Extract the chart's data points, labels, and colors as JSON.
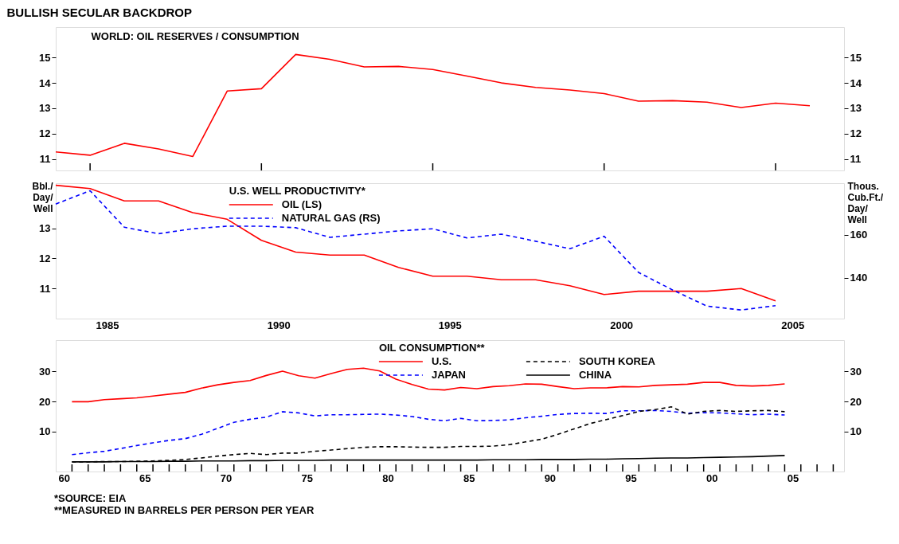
{
  "chart_data": [
    {
      "type": "line",
      "title": "BULLISH SECULAR BACKDROP",
      "subtitle": "WORLD: OIL RESERVES / CONSUMPTION",
      "x": [
        "1984",
        "1985",
        "1986",
        "1987",
        "1988",
        "1989",
        "1990",
        "1991",
        "1992",
        "1993",
        "1994",
        "1995",
        "1996",
        "1997",
        "1998",
        "1999",
        "2000",
        "2001",
        "2002",
        "2003",
        "2004",
        "2005",
        "2006"
      ],
      "xlim": [
        "1984",
        "2007"
      ],
      "xticks": [
        {
          "value": "1985",
          "label": null
        },
        {
          "value": "1990",
          "label": null
        },
        {
          "value": "1995",
          "label": null
        },
        {
          "value": "2000",
          "label": null
        },
        {
          "value": "2005",
          "label": null
        }
      ],
      "series": [
        {
          "color": "#ff0000",
          "line_style": "solid",
          "values": [
            11.28,
            11.15,
            11.62,
            11.4,
            11.1,
            13.68,
            13.77,
            15.12,
            14.93,
            14.63,
            14.65,
            14.53,
            14.27,
            14.0,
            13.82,
            13.72,
            13.58,
            13.28,
            13.3,
            13.24,
            13.03,
            13.2,
            13.1
          ]
        }
      ],
      "ylim": [
        10.55,
        16.2
      ],
      "yticks": [
        11,
        12,
        13,
        14,
        15
      ],
      "y2lim": [
        10.55,
        16.2
      ],
      "y2ticks": [
        11,
        12,
        13,
        14,
        15
      ],
      "tick_labels": "y",
      "grid": false,
      "legend": false
    },
    {
      "type": "line",
      "legend_title": "U.S. WELL PRODUCTIVITY*",
      "ylabel": "Bbl./Day/Well",
      "y2label": "Thous. Cub.Ft./Day/Well",
      "x": [
        "1984",
        "1985",
        "1986",
        "1987",
        "1988",
        "1989",
        "1990",
        "1991",
        "1992",
        "1993",
        "1994",
        "1995",
        "1996",
        "1997",
        "1998",
        "1999",
        "2000",
        "2001",
        "2002",
        "2003",
        "2004",
        "2005"
      ],
      "xlim": [
        "1984",
        "2007"
      ],
      "xticks": [
        {
          "value": "1985-07",
          "label": "1985"
        },
        {
          "value": "1990-07",
          "label": "1990"
        },
        {
          "value": "1995-07",
          "label": "1995"
        },
        {
          "value": "2000-07",
          "label": "2000"
        },
        {
          "value": "2005-07",
          "label": "2005"
        }
      ],
      "series": [
        {
          "name": "OIL (LS)",
          "color": "#ff0000",
          "line_style": "solid",
          "values": [
            14.43,
            14.32,
            13.91,
            13.91,
            13.52,
            13.3,
            12.6,
            12.21,
            12.11,
            12.11,
            11.7,
            11.41,
            11.41,
            11.29,
            11.29,
            11.09,
            10.8,
            10.91,
            10.91,
            10.91,
            11.0,
            10.59
          ]
        },
        {
          "name": "NATURAL GAS (RS)",
          "color": "#0000ff",
          "line_style": "dashed",
          "axis": "y2",
          "values": [
            174.3,
            180.5,
            163.5,
            160.5,
            162.8,
            164,
            164,
            163.3,
            158.8,
            160.3,
            161.8,
            162.8,
            158.5,
            160.3,
            157,
            153.5,
            159.3,
            142.5,
            134.3,
            126.8,
            125,
            127
          ]
        }
      ],
      "ylim": [
        10,
        14.5
      ],
      "yticks": [
        11,
        12,
        13
      ],
      "y2lim": [
        121,
        184
      ],
      "y2ticks": [
        140,
        160
      ],
      "grid": false,
      "legend": "top left"
    },
    {
      "type": "line",
      "legend_title": "OIL CONSUMPTION**",
      "x": [
        "1961",
        "1962",
        "1963",
        "1964",
        "1965",
        "1966",
        "1967",
        "1968",
        "1969",
        "1970",
        "1971",
        "1972",
        "1973",
        "1974",
        "1975",
        "1976",
        "1977",
        "1978",
        "1979",
        "1980",
        "1981",
        "1982",
        "1983",
        "1984",
        "1985",
        "1986",
        "1987",
        "1988",
        "1989",
        "1990",
        "1991",
        "1992",
        "1993",
        "1994",
        "1995",
        "1996",
        "1997",
        "1998",
        "1999",
        "2000",
        "2001",
        "2002",
        "2003",
        "2004",
        "2005"
      ],
      "xlim": [
        "1960",
        "2008-09"
      ],
      "xticks": [
        {
          "value": "1960-07",
          "label": "60"
        },
        {
          "value": "1965-07",
          "label": "65"
        },
        {
          "value": "1970-07",
          "label": "70"
        },
        {
          "value": "1975-07",
          "label": "75"
        },
        {
          "value": "1980-07",
          "label": "80"
        },
        {
          "value": "1985-07",
          "label": "85"
        },
        {
          "value": "1990-07",
          "label": "90"
        },
        {
          "value": "1995-07",
          "label": "95"
        },
        {
          "value": "2000-07",
          "label": "00"
        },
        {
          "value": "2005-07",
          "label": "05"
        },
        {
          "value": "1961",
          "label": null
        },
        {
          "value": "1962",
          "label": null
        },
        {
          "value": "1963",
          "label": null
        },
        {
          "value": "1964",
          "label": null
        },
        {
          "value": "1965",
          "label": null
        },
        {
          "value": "1966",
          "label": null
        },
        {
          "value": "1967",
          "label": null
        },
        {
          "value": "1968",
          "label": null
        },
        {
          "value": "1969",
          "label": null
        },
        {
          "value": "1970",
          "label": null
        },
        {
          "value": "1971",
          "label": null
        },
        {
          "value": "1972",
          "label": null
        },
        {
          "value": "1973",
          "label": null
        },
        {
          "value": "1974",
          "label": null
        },
        {
          "value": "1975",
          "label": null
        },
        {
          "value": "1976",
          "label": null
        },
        {
          "value": "1977",
          "label": null
        },
        {
          "value": "1978",
          "label": null
        },
        {
          "value": "1979",
          "label": null
        },
        {
          "value": "1980",
          "label": null
        },
        {
          "value": "1981",
          "label": null
        },
        {
          "value": "1982",
          "label": null
        },
        {
          "value": "1983",
          "label": null
        },
        {
          "value": "1984",
          "label": null
        },
        {
          "value": "1985",
          "label": null
        },
        {
          "value": "1986",
          "label": null
        },
        {
          "value": "1987",
          "label": null
        },
        {
          "value": "1988",
          "label": null
        },
        {
          "value": "1989",
          "label": null
        },
        {
          "value": "1990",
          "label": null
        },
        {
          "value": "1991",
          "label": null
        },
        {
          "value": "1992",
          "label": null
        },
        {
          "value": "1993",
          "label": null
        },
        {
          "value": "1994",
          "label": null
        },
        {
          "value": "1995",
          "label": null
        },
        {
          "value": "1996",
          "label": null
        },
        {
          "value": "1997",
          "label": null
        },
        {
          "value": "1998",
          "label": null
        },
        {
          "value": "1999",
          "label": null
        },
        {
          "value": "2000",
          "label": null
        },
        {
          "value": "2001",
          "label": null
        },
        {
          "value": "2002",
          "label": null
        },
        {
          "value": "2003",
          "label": null
        },
        {
          "value": "2004",
          "label": null
        },
        {
          "value": "2005",
          "label": null
        },
        {
          "value": "2006",
          "label": null
        },
        {
          "value": "2007",
          "label": null
        },
        {
          "value": "2008",
          "label": null
        }
      ],
      "series": [
        {
          "name": "U.S.",
          "color": "#ff0000",
          "line_style": "solid",
          "values": [
            19.9,
            19.9,
            20.6,
            20.9,
            21.2,
            21.8,
            22.4,
            23.0,
            24.4,
            25.5,
            26.3,
            26.9,
            28.6,
            30.0,
            28.5,
            27.7,
            29.2,
            30.6,
            31.0,
            30.1,
            27.4,
            25.6,
            24.1,
            23.8,
            24.6,
            24.2,
            24.9,
            25.2,
            25.8,
            25.7,
            24.9,
            24.2,
            24.5,
            24.5,
            24.9,
            24.8,
            25.3,
            25.5,
            25.7,
            26.3,
            26.3,
            25.3,
            25.1,
            25.3,
            25.8
          ]
        },
        {
          "name": "JAPAN",
          "color": "#0000ff",
          "line_style": "dashed",
          "values": [
            2.4,
            3.0,
            3.5,
            4.4,
            5.4,
            6.3,
            7.1,
            7.7,
            9.1,
            11.1,
            13.1,
            14.1,
            14.8,
            16.6,
            16.2,
            15.2,
            15.6,
            15.6,
            15.7,
            15.8,
            15.5,
            15.0,
            14.1,
            13.6,
            14.4,
            13.6,
            13.7,
            13.9,
            14.6,
            15.1,
            15.7,
            16.0,
            16.1,
            16.0,
            16.9,
            16.9,
            17.0,
            16.7,
            16.1,
            16.3,
            16.2,
            15.9,
            15.6,
            15.8,
            15.5
          ]
        },
        {
          "name": "SOUTH KOREA",
          "color": "#000000",
          "line_style": "dashed",
          "values": [
            0.0,
            0.0,
            0.1,
            0.1,
            0.2,
            0.3,
            0.5,
            0.8,
            1.3,
            1.9,
            2.4,
            2.8,
            2.4,
            2.9,
            2.9,
            3.5,
            3.9,
            4.4,
            4.8,
            5.0,
            5.0,
            4.9,
            4.8,
            4.8,
            5.1,
            5.1,
            5.2,
            5.7,
            6.6,
            7.5,
            9.1,
            10.9,
            12.7,
            14.0,
            15.3,
            16.7,
            17.3,
            18.2,
            15.8,
            16.7,
            17.0,
            16.7,
            16.9,
            17.0,
            16.6
          ]
        },
        {
          "name": "CHINA",
          "color": "#000000",
          "line_style": "solid",
          "values": [
            0.0,
            0.0,
            0.0,
            0.1,
            0.1,
            0.1,
            0.2,
            0.2,
            0.3,
            0.3,
            0.3,
            0.4,
            0.4,
            0.5,
            0.5,
            0.5,
            0.6,
            0.6,
            0.6,
            0.6,
            0.6,
            0.6,
            0.6,
            0.6,
            0.6,
            0.6,
            0.7,
            0.7,
            0.7,
            0.8,
            0.8,
            0.8,
            0.9,
            0.9,
            1.0,
            1.1,
            1.2,
            1.3,
            1.3,
            1.4,
            1.5,
            1.6,
            1.7,
            1.9,
            2.1
          ]
        }
      ],
      "ylim": [
        -3.2,
        40.3
      ],
      "yticks": [
        10,
        20,
        30
      ],
      "y2lim": [
        -3.2,
        40.3
      ],
      "y2ticks": [
        10,
        20,
        30
      ],
      "grid": false,
      "legend": "top",
      "annotations": [
        "*SOURCE: EIA",
        "**MEASURED IN BARRELS PER PERSON PER YEAR"
      ]
    }
  ]
}
